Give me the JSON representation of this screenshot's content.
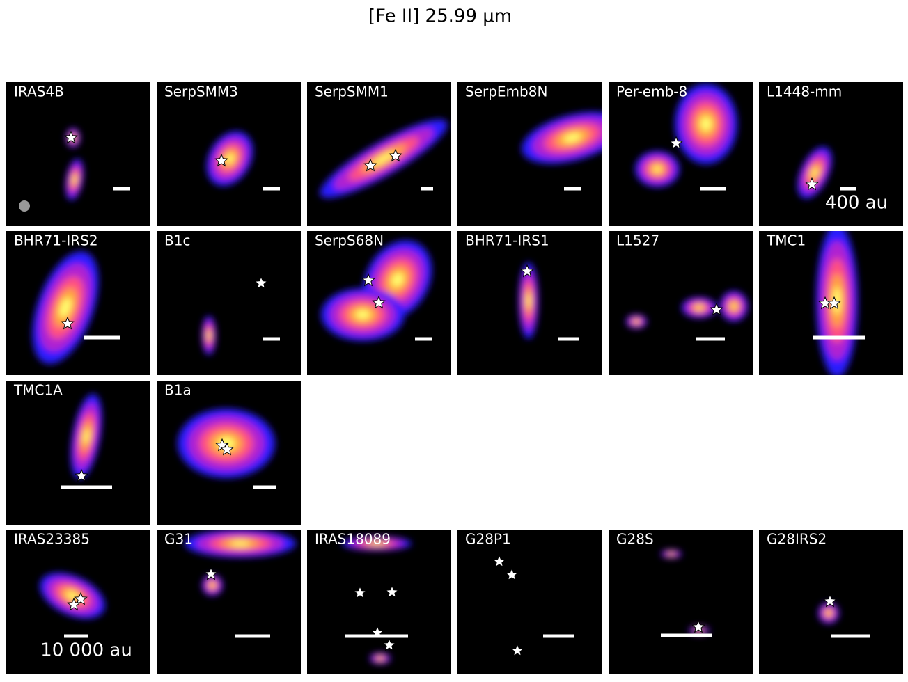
{
  "title": "[Fe II] 25.99 μm",
  "panels": [
    {
      "label": "IRAS4B"
    },
    {
      "label": "SerpSMM3"
    },
    {
      "label": "SerpSMM1"
    },
    {
      "label": "SerpEmb8N"
    },
    {
      "label": "Per-emb-8"
    },
    {
      "label": "L1448-mm",
      "scale_label": "400 au"
    },
    {
      "label": "BHR71-IRS2"
    },
    {
      "label": "B1c"
    },
    {
      "label": "SerpS68N"
    },
    {
      "label": "BHR71-IRS1"
    },
    {
      "label": "L1527"
    },
    {
      "label": "TMC1"
    },
    {
      "label": "TMC1A"
    },
    {
      "label": "B1a"
    },
    {
      "label": "IRAS23385",
      "scale_label": "10 000 au"
    },
    {
      "label": "G31"
    },
    {
      "label": "IRAS18089"
    },
    {
      "label": "G28P1"
    },
    {
      "label": "G28S"
    },
    {
      "label": "G28IRS2"
    }
  ]
}
